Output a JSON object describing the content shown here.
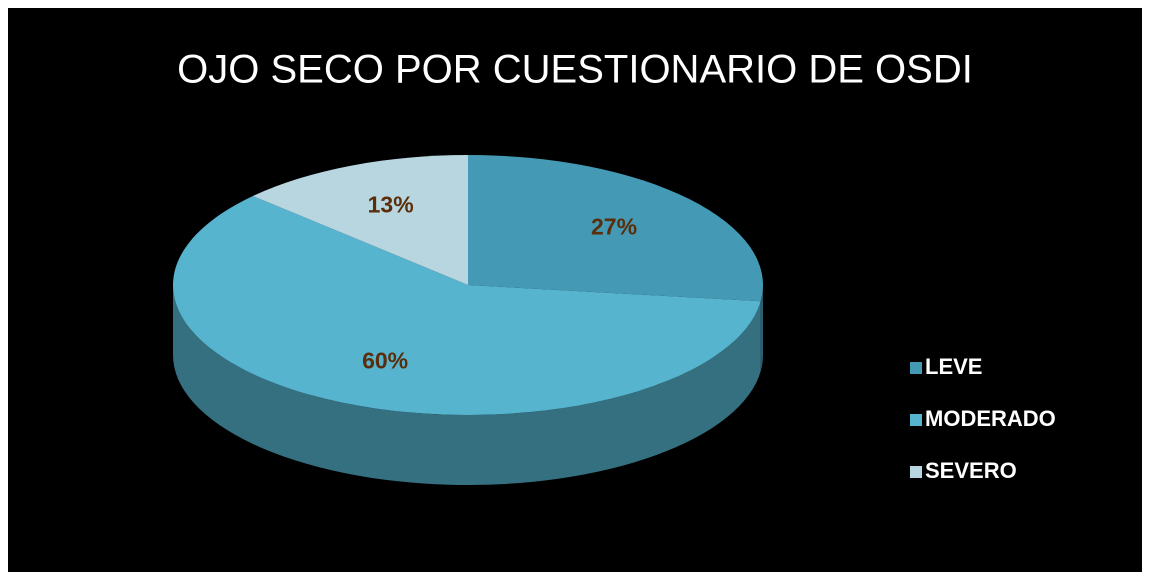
{
  "chart_data": {
    "type": "pie",
    "title": "OJO SECO POR CUESTIONARIO DE OSDI",
    "categories": [
      "LEVE",
      "MODERADO",
      "SEVERO"
    ],
    "values": [
      27,
      60,
      13
    ],
    "value_labels": [
      "27%",
      "60%",
      "13%"
    ],
    "colors": [
      "#4499b5",
      "#56b4cf",
      "#b8d6e0"
    ],
    "legend": "right"
  }
}
